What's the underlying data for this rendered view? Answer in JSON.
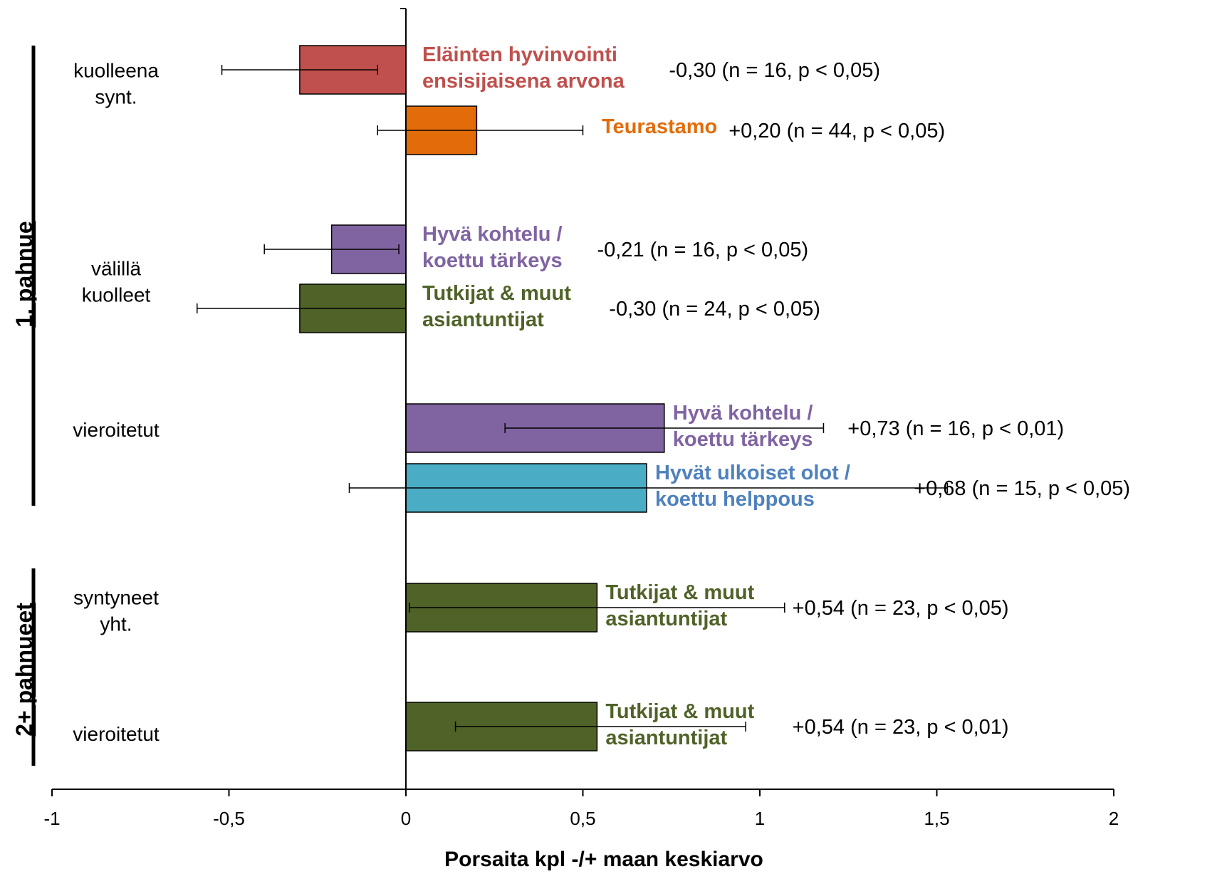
{
  "chart_data": {
    "type": "bar",
    "orientation": "horizontal",
    "title": "",
    "xlabel": "Porsaita kpl -/+ maan keskiarvo",
    "ylabel": "",
    "xlim": [
      -1,
      2
    ],
    "xticks": [
      -1,
      -0.5,
      0,
      0.5,
      1,
      1.5,
      2
    ],
    "xtick_labels": [
      "-1",
      "-0,5",
      "0",
      "0,5",
      "1",
      "1,5",
      "2"
    ],
    "grid": false,
    "groups": [
      {
        "label": "1. pahnue",
        "categories": [
          "kuolleena synt.",
          "välillä kuolleet",
          "vieroitetut"
        ]
      },
      {
        "label": "2+ pahnueet",
        "categories": [
          "syntyneet yht.",
          "vieroitetut"
        ]
      }
    ],
    "categories": [
      {
        "lines": [
          "kuolleena",
          "synt."
        ]
      },
      {
        "lines": [
          "välillä",
          "kuolleet"
        ]
      },
      {
        "lines": [
          "vieroitetut"
        ]
      },
      {
        "lines": [
          "syntyneet",
          "yht."
        ]
      },
      {
        "lines": [
          "vieroitetut"
        ]
      }
    ],
    "bars": [
      {
        "category": 0,
        "value": -0.3,
        "err_low": -0.52,
        "err_high": -0.08,
        "color": "#c0504d",
        "label_lines": [
          "Eläinten hyvinvointi",
          "ensisijaisena arvona"
        ],
        "label_color": "#c0504d",
        "stat": "-0,30 (n = 16,  p < 0,05)"
      },
      {
        "category": 0,
        "value": 0.2,
        "err_low": -0.08,
        "err_high": 0.5,
        "color": "#e36c0a",
        "label_lines": [
          "Teurastamo"
        ],
        "label_color": "#e36c0a",
        "stat": "+0,20 (n = 44,  p < 0,05)"
      },
      {
        "category": 1,
        "value": -0.21,
        "err_low": -0.4,
        "err_high": -0.02,
        "color": "#8064a2",
        "label_lines": [
          "Hyvä kohtelu /",
          "koettu tärkeys"
        ],
        "label_color": "#8064a2",
        "stat": "-0,21 (n = 16,  p < 0,05)"
      },
      {
        "category": 1,
        "value": -0.3,
        "err_low": -0.59,
        "err_high": 0.0,
        "color": "#4f6228",
        "label_lines": [
          "Tutkijat & muut",
          "asiantuntijat"
        ],
        "label_color": "#4f6228",
        "stat": "-0,30 (n = 24,  p < 0,05)"
      },
      {
        "category": 2,
        "value": 0.73,
        "err_low": 0.28,
        "err_high": 1.18,
        "color": "#8064a2",
        "label_lines": [
          "Hyvä kohtelu /",
          "koettu tärkeys"
        ],
        "label_color": "#8064a2",
        "stat": "+0,73 (n = 16,  p < 0,01)"
      },
      {
        "category": 2,
        "value": 0.68,
        "err_low": -0.16,
        "err_high": 1.53,
        "color": "#4bacc6",
        "label_lines": [
          "Hyvät ulkoiset olot /",
          "koettu helppous"
        ],
        "label_color": "#4f81bd",
        "stat": "+0,68 (n = 15,  p < 0,05)"
      },
      {
        "category": 3,
        "value": 0.54,
        "err_low": 0.01,
        "err_high": 1.07,
        "color": "#4f6228",
        "label_lines": [
          "Tutkijat & muut",
          "asiantuntijat"
        ],
        "label_color": "#4f6228",
        "stat": "+0,54 (n = 23,  p < 0,05)"
      },
      {
        "category": 4,
        "value": 0.54,
        "err_low": 0.14,
        "err_high": 0.96,
        "color": "#4f6228",
        "label_lines": [
          "Tutkijat & muut",
          "asiantuntijat"
        ],
        "label_color": "#4f6228",
        "stat": "+0,54 (n = 23,  p < 0,01)"
      }
    ]
  }
}
